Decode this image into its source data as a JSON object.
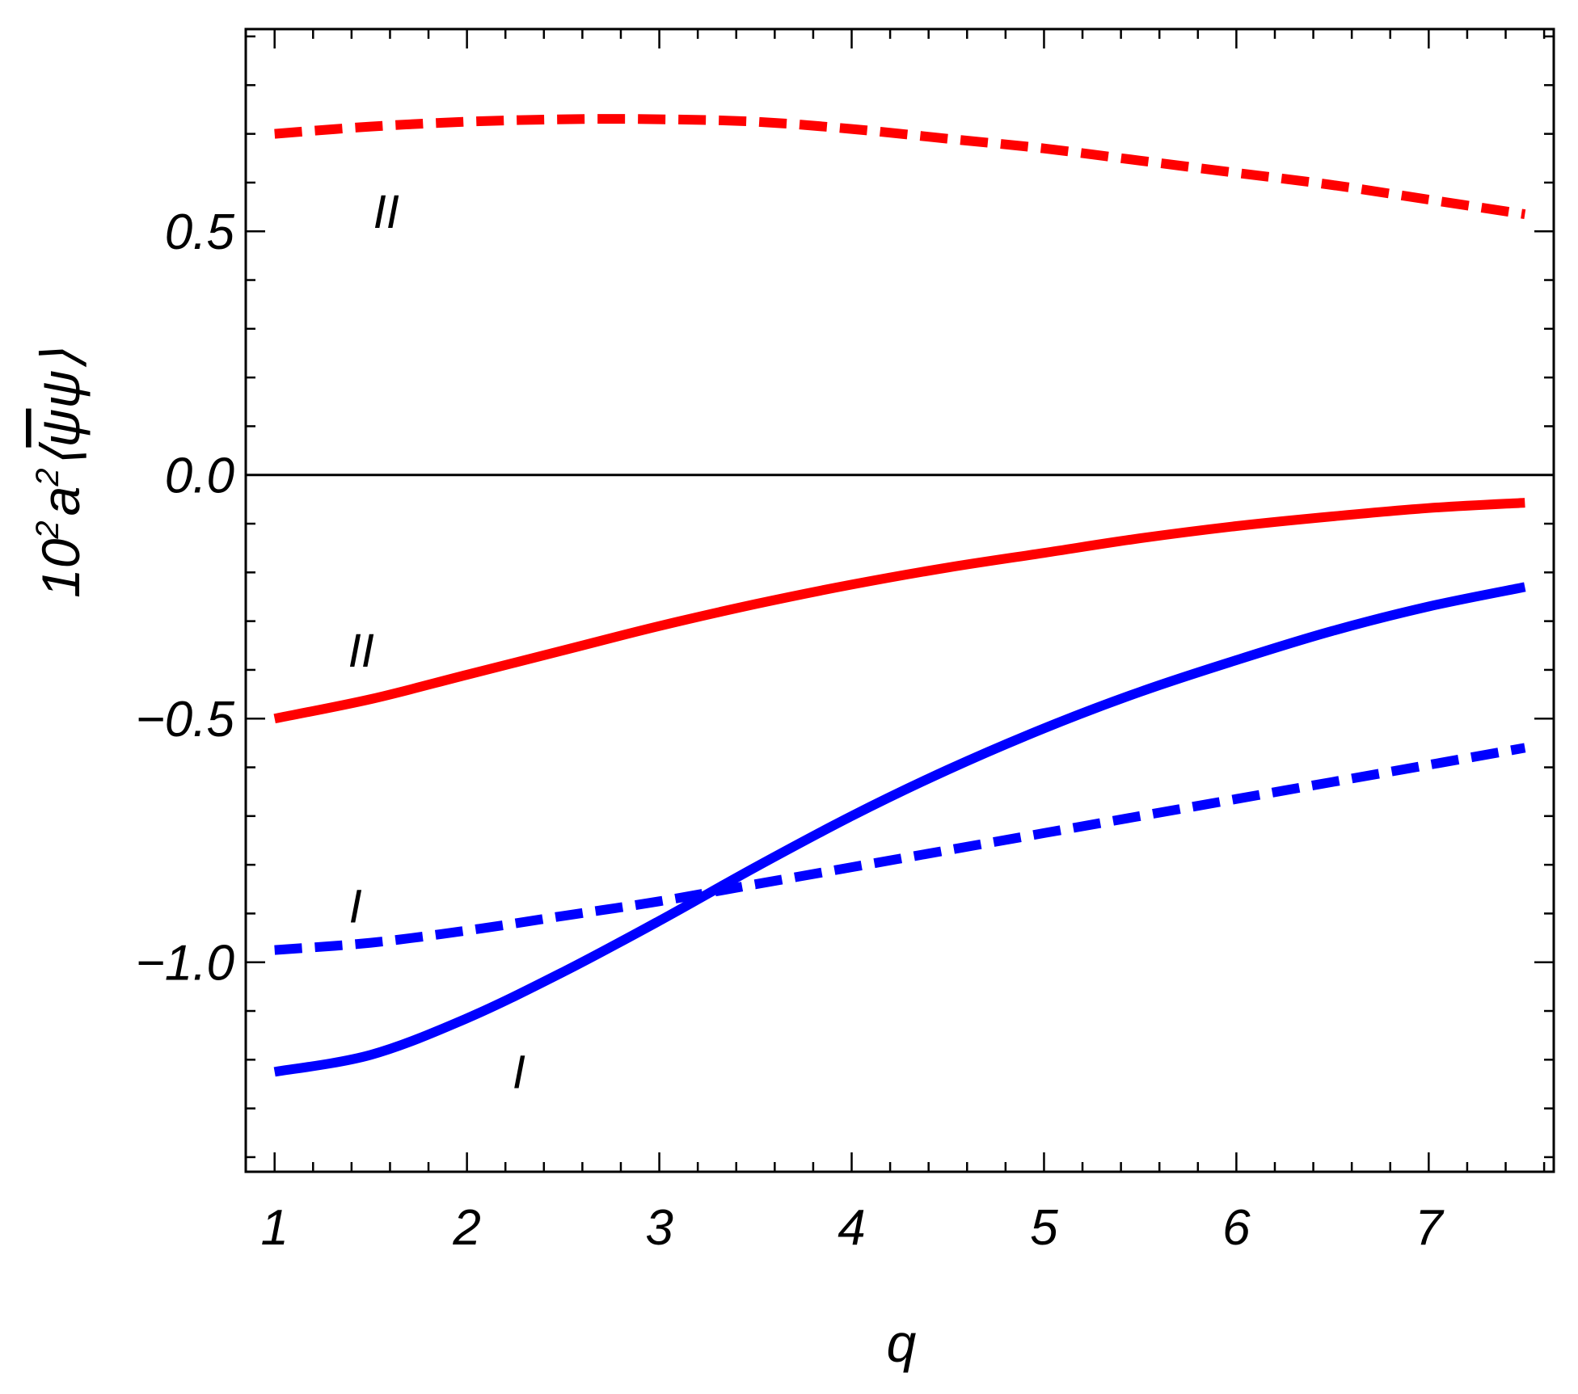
{
  "chart_data": {
    "type": "line",
    "title": "",
    "xlabel": "q",
    "ylabel": {
      "prefix": "10",
      "sup1": "2",
      "mid": "a",
      "sup2": "2",
      "open": "⟨",
      "bar_psi": "ψ",
      "psi": "ψ",
      "close": "⟩"
    },
    "xlim": [
      0.85,
      7.65
    ],
    "ylim": [
      -1.43,
      0.915
    ],
    "x_ticks": [
      {
        "value": 1,
        "label": "1"
      },
      {
        "value": 2,
        "label": "2"
      },
      {
        "value": 3,
        "label": "3"
      },
      {
        "value": 4,
        "label": "4"
      },
      {
        "value": 5,
        "label": "5"
      },
      {
        "value": 6,
        "label": "6"
      },
      {
        "value": 7,
        "label": "7"
      }
    ],
    "y_ticks": [
      {
        "value": 0.5,
        "label": "0.5"
      },
      {
        "value": 0.0,
        "label": "0.0"
      },
      {
        "value": -0.5,
        "label": "−0.5"
      },
      {
        "value": -1.0,
        "label": "−1.0"
      }
    ],
    "zero_line": true,
    "grid": false,
    "series": [
      {
        "color": "#ff0000",
        "style": "dashed",
        "x": [
          1.0,
          1.5,
          2.0,
          2.5,
          3.0,
          3.5,
          4.0,
          4.5,
          5.0,
          5.5,
          6.0,
          6.5,
          7.0,
          7.5
        ],
        "y": [
          0.7,
          0.715,
          0.725,
          0.73,
          0.73,
          0.725,
          0.71,
          0.69,
          0.67,
          0.645,
          0.62,
          0.595,
          0.565,
          0.535
        ]
      },
      {
        "color": "#ff0000",
        "style": "solid",
        "x": [
          1.0,
          1.5,
          2.0,
          2.5,
          3.0,
          3.5,
          4.0,
          4.5,
          5.0,
          5.5,
          6.0,
          6.5,
          7.0,
          7.5
        ],
        "y": [
          -0.5,
          -0.46,
          -0.41,
          -0.36,
          -0.31,
          -0.265,
          -0.225,
          -0.19,
          -0.16,
          -0.13,
          -0.105,
          -0.085,
          -0.068,
          -0.057
        ]
      },
      {
        "color": "#0000ff",
        "style": "dashed",
        "x": [
          1.0,
          1.5,
          2.0,
          2.5,
          3.0,
          3.5,
          4.0,
          4.5,
          5.0,
          5.5,
          6.0,
          6.5,
          7.0,
          7.5
        ],
        "y": [
          -0.975,
          -0.96,
          -0.935,
          -0.905,
          -0.875,
          -0.84,
          -0.805,
          -0.77,
          -0.735,
          -0.7,
          -0.665,
          -0.63,
          -0.595,
          -0.56
        ]
      },
      {
        "color": "#0000ff",
        "style": "solid",
        "x": [
          1.0,
          1.5,
          2.0,
          2.5,
          3.0,
          3.5,
          4.0,
          4.5,
          5.0,
          5.5,
          6.0,
          6.5,
          7.0,
          7.5
        ],
        "y": [
          -1.225,
          -1.19,
          -1.115,
          -1.02,
          -0.915,
          -0.805,
          -0.7,
          -0.605,
          -0.52,
          -0.445,
          -0.38,
          -0.32,
          -0.27,
          -0.23
        ]
      }
    ],
    "annotations": [
      {
        "text": "II",
        "x": 1.58,
        "y": 0.54
      },
      {
        "text": "II",
        "x": 1.45,
        "y": -0.36
      },
      {
        "text": "I",
        "x": 1.42,
        "y": -0.885
      },
      {
        "text": "I",
        "x": 2.27,
        "y": -1.225
      }
    ]
  }
}
